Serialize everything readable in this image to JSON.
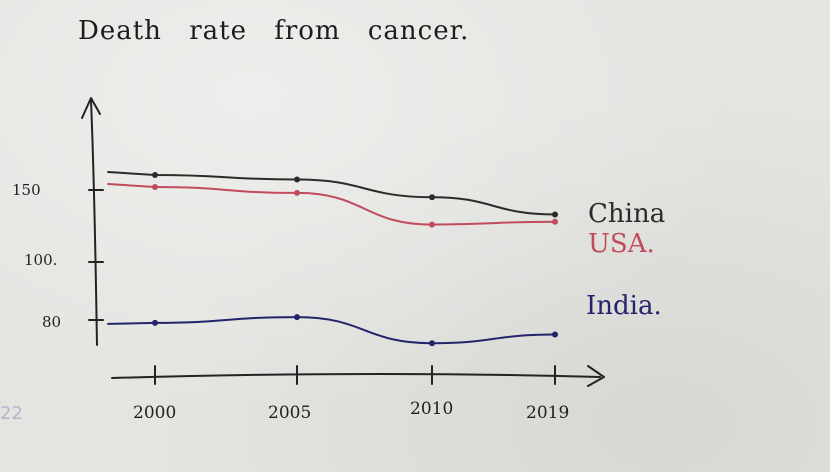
{
  "chart_data": {
    "type": "line",
    "title": "Death rate from cancer.",
    "x": [
      "2000",
      "2005",
      "2010",
      "2019"
    ],
    "y_ticks": [
      "150",
      "100.",
      "80"
    ],
    "series": [
      {
        "name": "China",
        "color": "#2b2b2b",
        "values": [
          160,
          157,
          145,
          133
        ]
      },
      {
        "name": "USA.",
        "color": "#c24a5d",
        "values": [
          152,
          148,
          126,
          128
        ]
      },
      {
        "name": "India.",
        "color": "#23246b",
        "values": [
          79,
          81,
          72,
          75
        ]
      }
    ],
    "grid": false
  },
  "margin_mark": "22"
}
